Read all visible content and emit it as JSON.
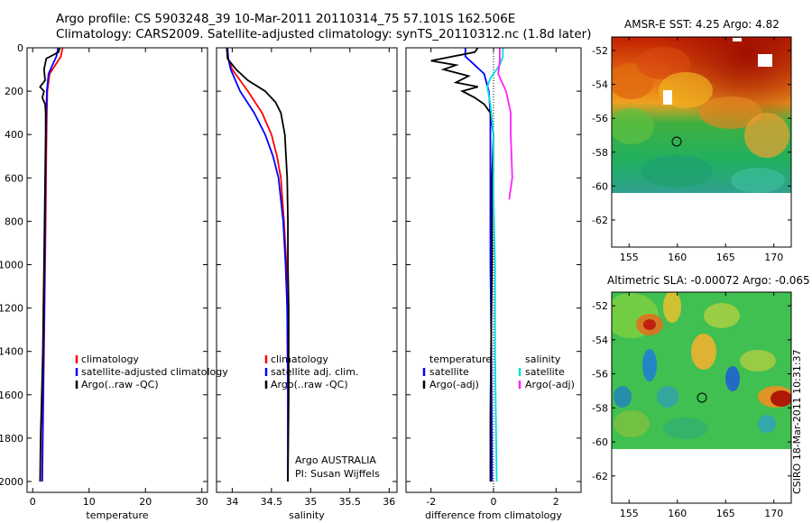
{
  "header": {
    "line1": "Argo profile: CS 5903248_39 10-Mar-2011 20110314_75 57.101S 162.506E",
    "line2": "Climatology: CARS2009. Satellite-adjusted climatology: synTS_20110312.nc (1.8d later)"
  },
  "map_titles": {
    "sst": "AMSR-E SST: 4.25 Argo: 4.82",
    "sla": "Altimetric SLA: -0.00072 Argo: -0.065"
  },
  "credit": "CSIRO 18-Mar-2011 10:31:37",
  "colors": {
    "climatology": "#ff0000",
    "satellite": "#0000ff",
    "argo": "#000000",
    "salinity_satellite": "#00e0e0",
    "salinity_argo": "#ff20ff"
  },
  "chart_data": [
    {
      "type": "line",
      "xlabel": "temperature",
      "xlim": [
        -1,
        31
      ],
      "xticks": [
        0,
        10,
        20,
        30
      ],
      "ylim": [
        2050,
        0
      ],
      "yticks": [
        0,
        200,
        400,
        600,
        800,
        1000,
        1200,
        1400,
        1600,
        1800,
        2000
      ],
      "legend": [
        "climatology",
        "satellite-adjusted climatology",
        "Argo(..raw -QC)"
      ],
      "series": [
        {
          "name": "climatology",
          "color": "#ff0000",
          "points": [
            [
              5.3,
              0
            ],
            [
              5.0,
              40
            ],
            [
              4.0,
              80
            ],
            [
              3.0,
              120
            ],
            [
              2.6,
              200
            ],
            [
              2.5,
              300
            ],
            [
              2.4,
              500
            ],
            [
              2.3,
              800
            ],
            [
              2.1,
              1200
            ],
            [
              1.9,
              1600
            ],
            [
              1.7,
              2000
            ]
          ]
        },
        {
          "name": "satellite-adjusted climatology",
          "color": "#0000ff",
          "points": [
            [
              4.5,
              0
            ],
            [
              4.2,
              40
            ],
            [
              3.5,
              80
            ],
            [
              2.8,
              120
            ],
            [
              2.5,
              200
            ],
            [
              2.4,
              300
            ],
            [
              2.3,
              500
            ],
            [
              2.2,
              800
            ],
            [
              2.05,
              1200
            ],
            [
              1.85,
              1600
            ],
            [
              1.65,
              2000
            ]
          ]
        },
        {
          "name": "Argo(..raw -QC)",
          "color": "#000000",
          "points": [
            [
              4.8,
              0
            ],
            [
              4.6,
              20
            ],
            [
              2.4,
              50
            ],
            [
              2.0,
              100
            ],
            [
              2.2,
              150
            ],
            [
              1.3,
              180
            ],
            [
              2.0,
              200
            ],
            [
              1.7,
              230
            ],
            [
              2.2,
              260
            ],
            [
              2.3,
              300
            ],
            [
              2.3,
              400
            ],
            [
              2.2,
              600
            ],
            [
              2.1,
              800
            ],
            [
              2.0,
              1000
            ],
            [
              1.9,
              1200
            ],
            [
              1.8,
              1400
            ],
            [
              1.6,
              1600
            ],
            [
              1.4,
              1800
            ],
            [
              1.3,
              2000
            ]
          ]
        }
      ]
    },
    {
      "type": "line",
      "xlabel": "salinity",
      "xlim": [
        33.8,
        36.1
      ],
      "xticks": [
        34,
        34.5,
        35,
        35.5,
        36
      ],
      "ylim": [
        2050,
        0
      ],
      "legend": [
        "climatology",
        "satellite adj. clim.",
        "Argo(..raw -QC)"
      ],
      "annotation": [
        "Argo AUSTRALIA",
        "PI: Susan Wijffels"
      ],
      "series": [
        {
          "name": "climatology",
          "color": "#ff0000",
          "points": [
            [
              33.94,
              0
            ],
            [
              33.95,
              50
            ],
            [
              34.0,
              100
            ],
            [
              34.2,
              200
            ],
            [
              34.38,
              300
            ],
            [
              34.5,
              400
            ],
            [
              34.57,
              500
            ],
            [
              34.62,
              600
            ],
            [
              34.66,
              800
            ],
            [
              34.69,
              1000
            ],
            [
              34.7,
              1200
            ],
            [
              34.71,
              1600
            ],
            [
              34.71,
              2000
            ]
          ]
        },
        {
          "name": "satellite adj. clim.",
          "color": "#0000ff",
          "points": [
            [
              33.94,
              0
            ],
            [
              33.95,
              50
            ],
            [
              33.98,
              100
            ],
            [
              34.1,
              200
            ],
            [
              34.28,
              300
            ],
            [
              34.42,
              400
            ],
            [
              34.52,
              500
            ],
            [
              34.59,
              600
            ],
            [
              34.65,
              800
            ],
            [
              34.68,
              1000
            ],
            [
              34.7,
              1200
            ],
            [
              34.71,
              1600
            ],
            [
              34.71,
              2000
            ]
          ]
        },
        {
          "name": "Argo(..raw -QC)",
          "color": "#000000",
          "points": [
            [
              33.93,
              0
            ],
            [
              33.94,
              50
            ],
            [
              34.05,
              100
            ],
            [
              34.2,
              150
            ],
            [
              34.42,
              200
            ],
            [
              34.55,
              250
            ],
            [
              34.62,
              300
            ],
            [
              34.67,
              400
            ],
            [
              34.7,
              600
            ],
            [
              34.71,
              800
            ],
            [
              34.71,
              1000
            ],
            [
              34.72,
              1200
            ],
            [
              34.72,
              1600
            ],
            [
              34.71,
              2000
            ]
          ]
        }
      ]
    },
    {
      "type": "line",
      "xlabel": "difference from climatology",
      "xlim": [
        -2.8,
        2.8
      ],
      "xticks": [
        -2,
        0,
        2
      ],
      "ylim": [
        2050,
        0
      ],
      "legend": [
        "temperature",
        "satellite",
        "Argo(-adj)",
        "salinity",
        "satellite",
        "Argo(-adj)"
      ],
      "series": [
        {
          "name": "satellite",
          "color": "#0000ff",
          "points": [
            [
              -0.9,
              0
            ],
            [
              -0.9,
              40
            ],
            [
              -0.6,
              80
            ],
            [
              -0.3,
              120
            ],
            [
              -0.15,
              200
            ],
            [
              -0.1,
              300
            ],
            [
              -0.1,
              500
            ],
            [
              -0.1,
              1000
            ],
            [
              -0.07,
              1400
            ],
            [
              -0.05,
              2000
            ]
          ]
        },
        {
          "name": "Argo(-adj)",
          "color": "#000000",
          "points": [
            [
              -0.5,
              0
            ],
            [
              -0.6,
              20
            ],
            [
              -2.0,
              60
            ],
            [
              -1.2,
              80
            ],
            [
              -1.6,
              100
            ],
            [
              -0.8,
              130
            ],
            [
              -1.2,
              160
            ],
            [
              -0.5,
              180
            ],
            [
              -1.0,
              200
            ],
            [
              -0.6,
              230
            ],
            [
              -0.3,
              260
            ],
            [
              -0.1,
              300
            ],
            [
              0,
              400
            ],
            [
              -0.05,
              600
            ],
            [
              -0.05,
              1000
            ],
            [
              -0.08,
              1400
            ],
            [
              -0.1,
              1700
            ],
            [
              -0.1,
              2000
            ]
          ]
        },
        {
          "name": "satellite",
          "color": "#00e0e0",
          "points": [
            [
              0.3,
              0
            ],
            [
              0.3,
              40
            ],
            [
              0.2,
              80
            ],
            [
              -0.1,
              140
            ],
            [
              -0.2,
              180
            ],
            [
              -0.1,
              260
            ],
            [
              0,
              400
            ],
            [
              0,
              700
            ],
            [
              0.05,
              1000
            ],
            [
              0.05,
              1400
            ],
            [
              0.1,
              2000
            ]
          ]
        },
        {
          "name": "Argo(-adj)",
          "color": "#ff20ff",
          "points": [
            [
              0.2,
              0
            ],
            [
              0.2,
              60
            ],
            [
              0.15,
              120
            ],
            [
              0.4,
              200
            ],
            [
              0.55,
              300
            ],
            [
              0.55,
              400
            ],
            [
              0.6,
              600
            ],
            [
              0.5,
              700
            ]
          ]
        }
      ]
    }
  ],
  "map_axes": {
    "x_ticks": [
      155,
      160,
      165,
      170
    ],
    "y_ticks": [
      -52,
      -54,
      -56,
      -58,
      -60,
      -62
    ]
  }
}
